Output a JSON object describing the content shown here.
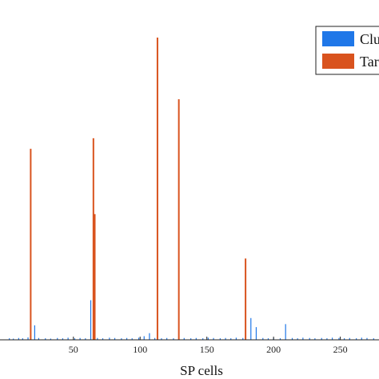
{
  "chart_data": {
    "type": "bar",
    "xlabel": "SP cells",
    "ylabel": "",
    "title": "",
    "xlim": [
      -5,
      279
    ],
    "ylim": [
      0,
      1
    ],
    "x_ticks": [
      "50",
      "100",
      "150",
      "200",
      "250"
    ],
    "x_tick_values": [
      50,
      100,
      150,
      200,
      250
    ],
    "grid": false,
    "legend_position": "top-right",
    "series": [
      {
        "name": "Clu",
        "color": "#1f77e8",
        "points": [
          {
            "x": 2,
            "y": 0.005
          },
          {
            "x": 5,
            "y": 0.004
          },
          {
            "x": 9,
            "y": 0.006
          },
          {
            "x": 12,
            "y": 0.005
          },
          {
            "x": 16,
            "y": 0.008
          },
          {
            "x": 21,
            "y": 0.048
          },
          {
            "x": 24,
            "y": 0.006
          },
          {
            "x": 29,
            "y": 0.005
          },
          {
            "x": 33,
            "y": 0.004
          },
          {
            "x": 38,
            "y": 0.006
          },
          {
            "x": 42,
            "y": 0.005
          },
          {
            "x": 46,
            "y": 0.007
          },
          {
            "x": 51,
            "y": 0.005
          },
          {
            "x": 55,
            "y": 0.006
          },
          {
            "x": 59,
            "y": 0.005
          },
          {
            "x": 63,
            "y": 0.131
          },
          {
            "x": 68,
            "y": 0.006
          },
          {
            "x": 72,
            "y": 0.005
          },
          {
            "x": 77,
            "y": 0.007
          },
          {
            "x": 81,
            "y": 0.006
          },
          {
            "x": 86,
            "y": 0.005
          },
          {
            "x": 90,
            "y": 0.006
          },
          {
            "x": 94,
            "y": 0.005
          },
          {
            "x": 99,
            "y": 0.007
          },
          {
            "x": 103,
            "y": 0.012
          },
          {
            "x": 107,
            "y": 0.022
          },
          {
            "x": 111,
            "y": 0.006
          },
          {
            "x": 116,
            "y": 0.005
          },
          {
            "x": 120,
            "y": 0.006
          },
          {
            "x": 125,
            "y": 0.005
          },
          {
            "x": 129,
            "y": 0.007
          },
          {
            "x": 133,
            "y": 0.006
          },
          {
            "x": 138,
            "y": 0.005
          },
          {
            "x": 142,
            "y": 0.006
          },
          {
            "x": 147,
            "y": 0.005
          },
          {
            "x": 151,
            "y": 0.007
          },
          {
            "x": 155,
            "y": 0.006
          },
          {
            "x": 160,
            "y": 0.005
          },
          {
            "x": 164,
            "y": 0.006
          },
          {
            "x": 168,
            "y": 0.005
          },
          {
            "x": 172,
            "y": 0.007
          },
          {
            "x": 177,
            "y": 0.006
          },
          {
            "x": 183,
            "y": 0.072
          },
          {
            "x": 187,
            "y": 0.042
          },
          {
            "x": 192,
            "y": 0.006
          },
          {
            "x": 196,
            "y": 0.005
          },
          {
            "x": 200,
            "y": 0.006
          },
          {
            "x": 205,
            "y": 0.005
          },
          {
            "x": 209,
            "y": 0.052
          },
          {
            "x": 214,
            "y": 0.006
          },
          {
            "x": 218,
            "y": 0.005
          },
          {
            "x": 222,
            "y": 0.007
          },
          {
            "x": 227,
            "y": 0.006
          },
          {
            "x": 231,
            "y": 0.005
          },
          {
            "x": 236,
            "y": 0.006
          },
          {
            "x": 240,
            "y": 0.005
          },
          {
            "x": 244,
            "y": 0.007
          },
          {
            "x": 249,
            "y": 0.006
          },
          {
            "x": 253,
            "y": 0.005
          },
          {
            "x": 257,
            "y": 0.006
          },
          {
            "x": 262,
            "y": 0.005
          },
          {
            "x": 266,
            "y": 0.007
          },
          {
            "x": 270,
            "y": 0.006
          },
          {
            "x": 275,
            "y": 0.005
          }
        ]
      },
      {
        "name": "Tar",
        "color": "#d9531e",
        "points": [
          {
            "x": 18,
            "y": 0.632
          },
          {
            "x": 65,
            "y": 0.667
          },
          {
            "x": 66,
            "y": 0.416
          },
          {
            "x": 113,
            "y": 1.0
          },
          {
            "x": 129,
            "y": 0.796
          },
          {
            "x": 179,
            "y": 0.269
          }
        ]
      }
    ]
  }
}
